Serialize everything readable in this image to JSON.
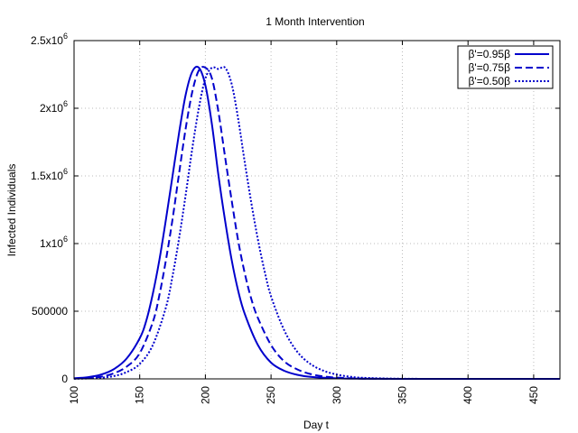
{
  "chart_data": {
    "type": "line",
    "title": "1 Month Intervention",
    "xlabel": "Day t",
    "ylabel": "Infected Individuals",
    "xlim": [
      100,
      470
    ],
    "ylim": [
      0,
      2500000
    ],
    "x_ticks": [
      100,
      150,
      200,
      250,
      300,
      350,
      400,
      450
    ],
    "y_ticks": [
      {
        "value": 0,
        "label": "0"
      },
      {
        "value": 500000,
        "label": "500000"
      },
      {
        "value": 1000000,
        "base": "1x10",
        "exp": "6"
      },
      {
        "value": 1500000,
        "base": "1.5x10",
        "exp": "6"
      },
      {
        "value": 2000000,
        "base": "2x10",
        "exp": "6"
      },
      {
        "value": 2500000,
        "base": "2.5x10",
        "exp": "6"
      }
    ],
    "grid": true,
    "legend_position": "top-right",
    "color": "#0000cc",
    "series": [
      {
        "name": "β'=0.95β",
        "dash": "solid",
        "x": [
          100,
          110,
          120,
          130,
          140,
          150,
          155,
          160,
          165,
          170,
          175,
          180,
          185,
          190,
          195,
          200,
          205,
          210,
          215,
          220,
          225,
          230,
          240,
          250,
          260,
          270,
          280,
          300,
          320,
          350,
          400,
          470
        ],
        "values": [
          5000,
          12000,
          30000,
          70000,
          150000,
          300000,
          430000,
          630000,
          880000,
          1180000,
          1500000,
          1820000,
          2100000,
          2270000,
          2300000,
          2170000,
          1880000,
          1500000,
          1170000,
          880000,
          650000,
          480000,
          250000,
          120000,
          60000,
          30000,
          15000,
          4000,
          1000,
          0,
          0,
          0
        ]
      },
      {
        "name": "β'=0.75β",
        "dash": "dashed",
        "x": [
          100,
          110,
          120,
          130,
          140,
          150,
          160,
          165,
          170,
          175,
          180,
          185,
          190,
          195,
          200,
          205,
          210,
          215,
          220,
          225,
          230,
          235,
          240,
          250,
          260,
          270,
          280,
          290,
          300,
          320,
          350,
          400,
          470
        ],
        "values": [
          2000,
          6000,
          15000,
          40000,
          90000,
          190000,
          420000,
          620000,
          880000,
          1180000,
          1520000,
          1850000,
          2120000,
          2280000,
          2300000,
          2220000,
          1970000,
          1640000,
          1320000,
          1020000,
          780000,
          590000,
          450000,
          250000,
          130000,
          70000,
          36000,
          18000,
          9000,
          2000,
          0,
          0,
          0
        ]
      },
      {
        "name": "β'=0.50β",
        "dash": "dotted",
        "x": [
          100,
          110,
          120,
          130,
          140,
          150,
          160,
          170,
          175,
          180,
          185,
          190,
          195,
          200,
          205,
          210,
          215,
          220,
          225,
          230,
          235,
          240,
          245,
          250,
          260,
          270,
          280,
          290,
          300,
          310,
          320,
          350,
          400,
          470
        ],
        "values": [
          1000,
          3000,
          8000,
          20000,
          50000,
          110000,
          250000,
          530000,
          760000,
          1040000,
          1360000,
          1700000,
          2000000,
          2220000,
          2300000,
          2290000,
          2300000,
          2180000,
          1920000,
          1600000,
          1300000,
          1030000,
          800000,
          610000,
          360000,
          200000,
          110000,
          60000,
          32000,
          16000,
          8000,
          1000,
          0,
          0
        ]
      }
    ]
  }
}
